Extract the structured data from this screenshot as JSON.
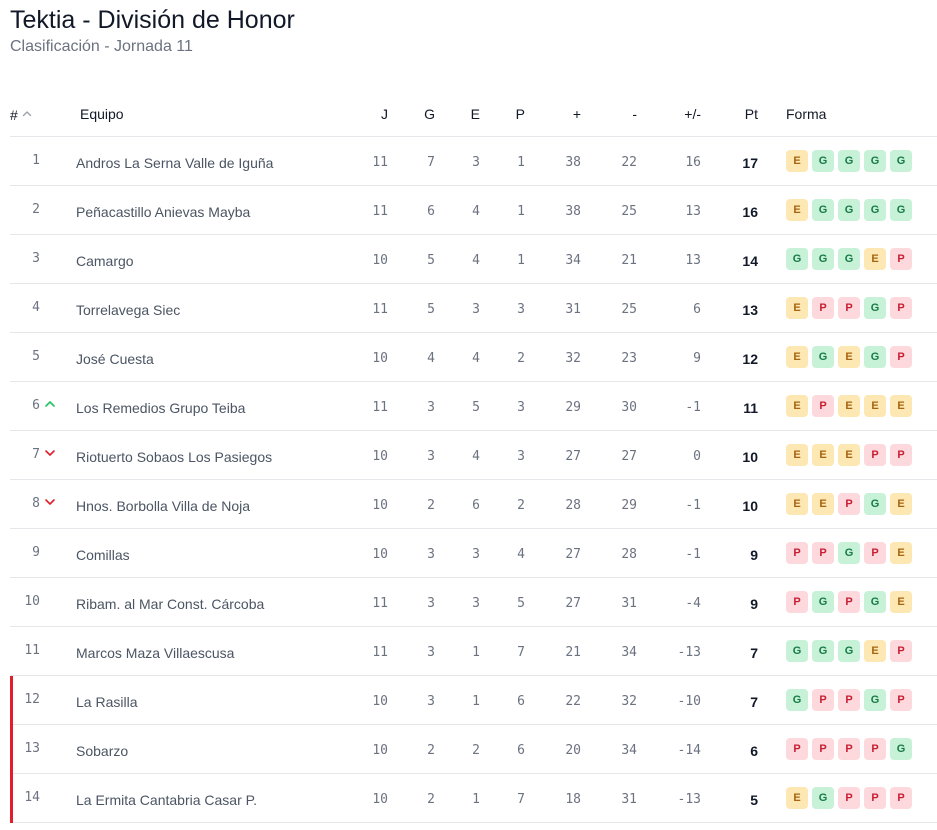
{
  "header": {
    "title": "Tektia - División de Honor",
    "subtitle": "Clasificación - Jornada 11"
  },
  "columns": {
    "pos": "#",
    "team": "Equipo",
    "j": "J",
    "g": "G",
    "e": "E",
    "p": "P",
    "plus": "+",
    "minus": "-",
    "diff": "+/-",
    "pt": "Pt",
    "form": "Forma"
  },
  "colors": {
    "win_bg": "#c7f2d8",
    "draw_bg": "#fde7b3",
    "loss_bg": "#fdd8dc",
    "relegation": "#e31e2c",
    "trend_up": "#22c55e",
    "trend_down": "#e31e2c"
  },
  "rows": [
    {
      "pos": "1",
      "trend": "",
      "team": "Andros La Serna Valle de Iguña",
      "j": "11",
      "g": "7",
      "e": "3",
      "p": "1",
      "plus": "38",
      "minus": "22",
      "diff": "16",
      "pt": "17",
      "form": [
        "E",
        "G",
        "G",
        "G",
        "G"
      ],
      "zone": ""
    },
    {
      "pos": "2",
      "trend": "",
      "team": "Peñacastillo Anievas Mayba",
      "j": "11",
      "g": "6",
      "e": "4",
      "p": "1",
      "plus": "38",
      "minus": "25",
      "diff": "13",
      "pt": "16",
      "form": [
        "E",
        "G",
        "G",
        "G",
        "G"
      ],
      "zone": ""
    },
    {
      "pos": "3",
      "trend": "",
      "team": "Camargo",
      "j": "10",
      "g": "5",
      "e": "4",
      "p": "1",
      "plus": "34",
      "minus": "21",
      "diff": "13",
      "pt": "14",
      "form": [
        "G",
        "G",
        "G",
        "E",
        "P"
      ],
      "zone": ""
    },
    {
      "pos": "4",
      "trend": "",
      "team": "Torrelavega Siec",
      "j": "11",
      "g": "5",
      "e": "3",
      "p": "3",
      "plus": "31",
      "minus": "25",
      "diff": "6",
      "pt": "13",
      "form": [
        "E",
        "P",
        "P",
        "G",
        "P"
      ],
      "zone": ""
    },
    {
      "pos": "5",
      "trend": "",
      "team": "José Cuesta",
      "j": "10",
      "g": "4",
      "e": "4",
      "p": "2",
      "plus": "32",
      "minus": "23",
      "diff": "9",
      "pt": "12",
      "form": [
        "E",
        "G",
        "E",
        "G",
        "P"
      ],
      "zone": ""
    },
    {
      "pos": "6",
      "trend": "up",
      "team": "Los Remedios Grupo Teiba",
      "j": "11",
      "g": "3",
      "e": "5",
      "p": "3",
      "plus": "29",
      "minus": "30",
      "diff": "-1",
      "pt": "11",
      "form": [
        "E",
        "P",
        "E",
        "E",
        "E"
      ],
      "zone": ""
    },
    {
      "pos": "7",
      "trend": "down",
      "team": "Riotuerto Sobaos Los Pasiegos",
      "j": "10",
      "g": "3",
      "e": "4",
      "p": "3",
      "plus": "27",
      "minus": "27",
      "diff": "0",
      "pt": "10",
      "form": [
        "E",
        "E",
        "E",
        "P",
        "P"
      ],
      "zone": ""
    },
    {
      "pos": "8",
      "trend": "down",
      "team": "Hnos. Borbolla Villa de Noja",
      "j": "10",
      "g": "2",
      "e": "6",
      "p": "2",
      "plus": "28",
      "minus": "29",
      "diff": "-1",
      "pt": "10",
      "form": [
        "E",
        "E",
        "P",
        "G",
        "E"
      ],
      "zone": ""
    },
    {
      "pos": "9",
      "trend": "",
      "team": "Comillas",
      "j": "10",
      "g": "3",
      "e": "3",
      "p": "4",
      "plus": "27",
      "minus": "28",
      "diff": "-1",
      "pt": "9",
      "form": [
        "P",
        "P",
        "G",
        "P",
        "E"
      ],
      "zone": ""
    },
    {
      "pos": "10",
      "trend": "",
      "team": "Ribam. al Mar Const. Cárcoba",
      "j": "11",
      "g": "3",
      "e": "3",
      "p": "5",
      "plus": "27",
      "minus": "31",
      "diff": "-4",
      "pt": "9",
      "form": [
        "P",
        "G",
        "P",
        "G",
        "E"
      ],
      "zone": ""
    },
    {
      "pos": "11",
      "trend": "",
      "team": "Marcos Maza Villaescusa",
      "j": "11",
      "g": "3",
      "e": "1",
      "p": "7",
      "plus": "21",
      "minus": "34",
      "diff": "-13",
      "pt": "7",
      "form": [
        "G",
        "G",
        "G",
        "E",
        "P"
      ],
      "zone": ""
    },
    {
      "pos": "12",
      "trend": "",
      "team": "La Rasilla",
      "j": "10",
      "g": "3",
      "e": "1",
      "p": "6",
      "plus": "22",
      "minus": "32",
      "diff": "-10",
      "pt": "7",
      "form": [
        "G",
        "P",
        "P",
        "G",
        "P"
      ],
      "zone": "relegation"
    },
    {
      "pos": "13",
      "trend": "",
      "team": "Sobarzo",
      "j": "10",
      "g": "2",
      "e": "2",
      "p": "6",
      "plus": "20",
      "minus": "34",
      "diff": "-14",
      "pt": "6",
      "form": [
        "P",
        "P",
        "P",
        "P",
        "G"
      ],
      "zone": "relegation"
    },
    {
      "pos": "14",
      "trend": "",
      "team": "La Ermita Cantabria Casar P.",
      "j": "10",
      "g": "2",
      "e": "1",
      "p": "7",
      "plus": "18",
      "minus": "31",
      "diff": "-13",
      "pt": "5",
      "form": [
        "E",
        "G",
        "P",
        "P",
        "P"
      ],
      "zone": "relegation"
    }
  ]
}
